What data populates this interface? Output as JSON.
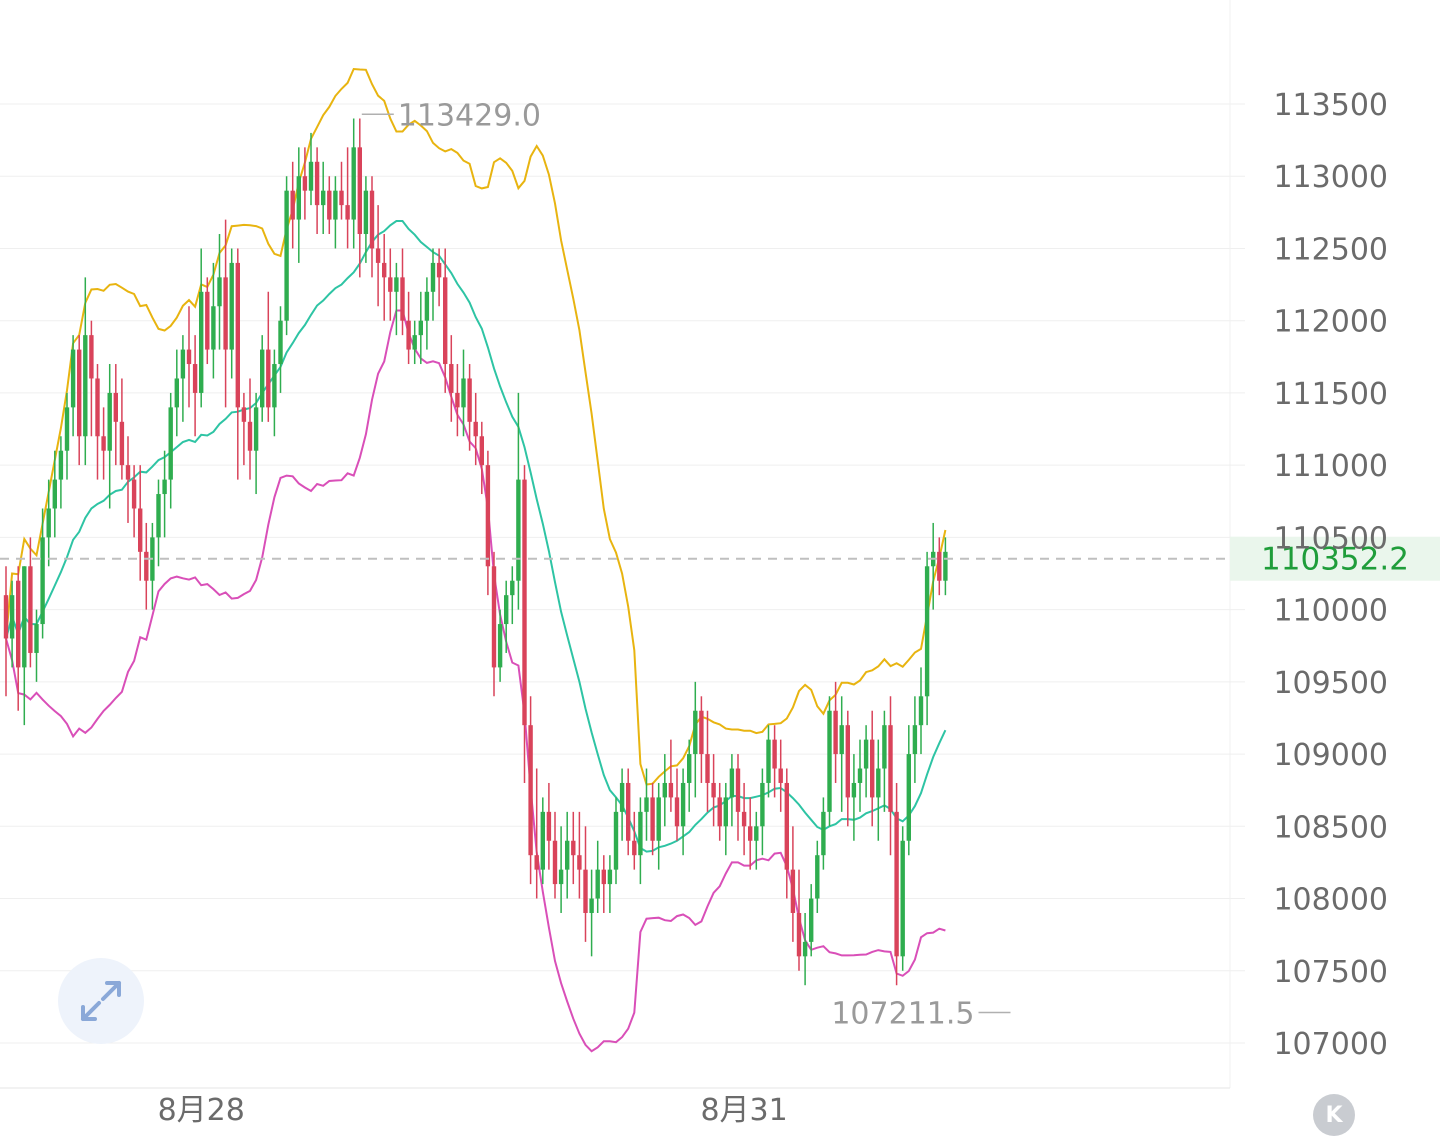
{
  "chart_data": {
    "type": "candlestick",
    "y_axis": {
      "ticks": [
        113500,
        113000,
        112500,
        112000,
        111500,
        111000,
        110500,
        110000,
        109500,
        109000,
        108500,
        108000,
        107500,
        107000
      ],
      "range": [
        106700,
        114000
      ],
      "position": "right"
    },
    "x_axis": {
      "labels": [
        {
          "text": "8月28",
          "index": 32
        },
        {
          "text": "8月31",
          "index": 121
        }
      ]
    },
    "current_price": {
      "value": 110352.2,
      "label": "110352.2"
    },
    "annotations": [
      {
        "label": "113429.0",
        "value": 113429.0,
        "index": 58
      },
      {
        "label": "107211.5",
        "value": 107211.5,
        "index": 165
      }
    ],
    "candles_ohlc": [
      [
        110100,
        110300,
        109400,
        109800
      ],
      [
        109800,
        110200,
        109600,
        110100
      ],
      [
        110200,
        110300,
        109300,
        109600
      ],
      [
        109600,
        110300,
        109200,
        110300
      ],
      [
        110300,
        110500,
        109600,
        109700
      ],
      [
        109700,
        110000,
        109500,
        109900
      ],
      [
        109900,
        110700,
        109800,
        110500
      ],
      [
        110500,
        110900,
        110300,
        110700
      ],
      [
        110700,
        111100,
        110500,
        110900
      ],
      [
        110900,
        111200,
        110700,
        111100
      ],
      [
        111100,
        111500,
        110900,
        111400
      ],
      [
        111400,
        111900,
        111200,
        111800
      ],
      [
        111800,
        111900,
        111000,
        111200
      ],
      [
        111200,
        112300,
        111000,
        111900
      ],
      [
        111900,
        112000,
        111200,
        111600
      ],
      [
        111600,
        111700,
        110900,
        111200
      ],
      [
        111200,
        111400,
        110900,
        111100
      ],
      [
        111100,
        111700,
        110700,
        111500
      ],
      [
        111500,
        111700,
        111000,
        111300
      ],
      [
        111300,
        111600,
        110900,
        111000
      ],
      [
        111000,
        111200,
        110600,
        110900
      ],
      [
        110900,
        111000,
        110500,
        110700
      ],
      [
        110700,
        111000,
        110200,
        110400
      ],
      [
        110400,
        110600,
        110000,
        110200
      ],
      [
        110200,
        110600,
        110000,
        110500
      ],
      [
        110500,
        110900,
        110300,
        110800
      ],
      [
        110800,
        111100,
        110500,
        110900
      ],
      [
        110900,
        111500,
        110700,
        111400
      ],
      [
        111400,
        111800,
        111200,
        111600
      ],
      [
        111600,
        111900,
        111300,
        111800
      ],
      [
        111800,
        112100,
        111400,
        111700
      ],
      [
        111700,
        111900,
        111200,
        111500
      ],
      [
        111500,
        112500,
        111400,
        112200
      ],
      [
        112200,
        112300,
        111700,
        111800
      ],
      [
        111800,
        112400,
        111600,
        112100
      ],
      [
        112100,
        112600,
        111800,
        112300
      ],
      [
        112300,
        112700,
        111400,
        111800
      ],
      [
        111800,
        112500,
        111600,
        112400
      ],
      [
        112400,
        112500,
        110900,
        111400
      ],
      [
        111400,
        111500,
        111000,
        111300
      ],
      [
        111300,
        111600,
        110900,
        111100
      ],
      [
        111100,
        111500,
        110800,
        111400
      ],
      [
        111400,
        111900,
        111300,
        111800
      ],
      [
        111800,
        112200,
        111300,
        111400
      ],
      [
        111400,
        111800,
        111200,
        111700
      ],
      [
        111700,
        112100,
        111500,
        112000
      ],
      [
        112000,
        113000,
        111900,
        112900
      ],
      [
        112900,
        113100,
        112500,
        112700
      ],
      [
        112700,
        113200,
        112400,
        113000
      ],
      [
        113000,
        113200,
        112700,
        112900
      ],
      [
        112900,
        113300,
        112800,
        113100
      ],
      [
        113100,
        113200,
        112600,
        112800
      ],
      [
        112800,
        113100,
        112600,
        112900
      ],
      [
        112900,
        113000,
        112600,
        112700
      ],
      [
        112700,
        113000,
        112500,
        112900
      ],
      [
        112900,
        113100,
        112700,
        112800
      ],
      [
        112800,
        113200,
        112500,
        112700
      ],
      [
        112700,
        113400,
        112500,
        113200
      ],
      [
        113200,
        113400,
        112300,
        112600
      ],
      [
        112600,
        113000,
        112400,
        112900
      ],
      [
        112900,
        113000,
        112300,
        112500
      ],
      [
        112500,
        112800,
        112100,
        112400
      ],
      [
        112400,
        112600,
        112000,
        112300
      ],
      [
        112300,
        112500,
        112000,
        112200
      ],
      [
        112200,
        112400,
        111900,
        112300
      ],
      [
        112300,
        112500,
        111900,
        112000
      ],
      [
        112000,
        112200,
        111700,
        111800
      ],
      [
        111800,
        112000,
        111700,
        111900
      ],
      [
        111900,
        112200,
        111700,
        112000
      ],
      [
        112000,
        112300,
        111800,
        112200
      ],
      [
        112200,
        112500,
        112000,
        112400
      ],
      [
        112400,
        112500,
        112100,
        112300
      ],
      [
        112300,
        112500,
        111500,
        111700
      ],
      [
        111700,
        111900,
        111300,
        111500
      ],
      [
        111500,
        111700,
        111200,
        111400
      ],
      [
        111400,
        111800,
        111200,
        111600
      ],
      [
        111600,
        111700,
        111100,
        111300
      ],
      [
        111300,
        111500,
        111000,
        111200
      ],
      [
        111200,
        111300,
        110800,
        111000
      ],
      [
        111000,
        111100,
        110100,
        110300
      ],
      [
        110300,
        110400,
        109400,
        109600
      ],
      [
        109600,
        110000,
        109500,
        109900
      ],
      [
        109900,
        110200,
        109700,
        110100
      ],
      [
        110100,
        110300,
        109900,
        110200
      ],
      [
        110200,
        111500,
        110000,
        110900
      ],
      [
        110900,
        111000,
        108800,
        109200
      ],
      [
        109200,
        109400,
        108100,
        108300
      ],
      [
        108300,
        108900,
        108000,
        108200
      ],
      [
        108200,
        108700,
        108100,
        108600
      ],
      [
        108600,
        108800,
        108200,
        108400
      ],
      [
        108400,
        108600,
        108000,
        108100
      ],
      [
        108100,
        108500,
        107900,
        108200
      ],
      [
        108200,
        108600,
        108000,
        108400
      ],
      [
        108400,
        108600,
        108100,
        108300
      ],
      [
        108300,
        108600,
        108000,
        108200
      ],
      [
        108200,
        108500,
        107700,
        107900
      ],
      [
        107900,
        108200,
        107600,
        108000
      ],
      [
        108000,
        108400,
        107900,
        108200
      ],
      [
        108200,
        108300,
        107900,
        108100
      ],
      [
        108100,
        108300,
        107900,
        108200
      ],
      [
        108200,
        108700,
        108100,
        108600
      ],
      [
        108600,
        108900,
        108400,
        108800
      ],
      [
        108800,
        108900,
        108300,
        108400
      ],
      [
        108400,
        108600,
        108200,
        108300
      ],
      [
        108300,
        108700,
        108100,
        108600
      ],
      [
        108600,
        108900,
        108400,
        108700
      ],
      [
        108700,
        108800,
        108300,
        108400
      ],
      [
        108400,
        108800,
        108200,
        108700
      ],
      [
        108700,
        109000,
        108500,
        108800
      ],
      [
        108800,
        109100,
        108600,
        108700
      ],
      [
        108700,
        108900,
        108400,
        108500
      ],
      [
        108500,
        108900,
        108300,
        108800
      ],
      [
        108800,
        109100,
        108600,
        109000
      ],
      [
        109000,
        109500,
        108700,
        109300
      ],
      [
        109300,
        109400,
        108800,
        109000
      ],
      [
        109000,
        109300,
        108600,
        108800
      ],
      [
        108800,
        109000,
        108500,
        108700
      ],
      [
        108700,
        108800,
        108400,
        108500
      ],
      [
        108500,
        108800,
        108300,
        108700
      ],
      [
        108700,
        109000,
        108500,
        108900
      ],
      [
        108900,
        109000,
        108400,
        108600
      ],
      [
        108600,
        108800,
        108300,
        108500
      ],
      [
        108500,
        108700,
        108200,
        108400
      ],
      [
        108400,
        108600,
        108200,
        108500
      ],
      [
        108500,
        108900,
        108300,
        108800
      ],
      [
        108800,
        109200,
        108700,
        109100
      ],
      [
        109100,
        109200,
        108700,
        108900
      ],
      [
        108900,
        109100,
        108600,
        108800
      ],
      [
        108800,
        108900,
        108000,
        108200
      ],
      [
        108200,
        108500,
        107700,
        107900
      ],
      [
        107900,
        108200,
        107500,
        107600
      ],
      [
        107600,
        107900,
        107400,
        107700
      ],
      [
        107700,
        108100,
        107600,
        108000
      ],
      [
        108000,
        108400,
        107900,
        108300
      ],
      [
        108300,
        108700,
        108200,
        108600
      ],
      [
        108600,
        109400,
        108500,
        109300
      ],
      [
        109300,
        109500,
        108800,
        109000
      ],
      [
        109000,
        109400,
        108600,
        109200
      ],
      [
        109200,
        109300,
        108500,
        108700
      ],
      [
        108700,
        109000,
        108400,
        108800
      ],
      [
        108800,
        109100,
        108600,
        108900
      ],
      [
        108900,
        109200,
        108700,
        109100
      ],
      [
        109100,
        109300,
        108500,
        108700
      ],
      [
        108700,
        109100,
        108400,
        108900
      ],
      [
        108900,
        109300,
        108600,
        109200
      ],
      [
        109200,
        109400,
        108300,
        108600
      ],
      [
        108600,
        108800,
        107400,
        107600
      ],
      [
        107600,
        108500,
        107500,
        108400
      ],
      [
        108400,
        109200,
        108300,
        109000
      ],
      [
        109000,
        109400,
        108800,
        109200
      ],
      [
        109200,
        109600,
        109000,
        109400
      ],
      [
        109400,
        110400,
        109200,
        110300
      ],
      [
        110300,
        110600,
        110000,
        110400
      ],
      [
        110400,
        110500,
        110100,
        110200
      ],
      [
        110200,
        110500,
        110100,
        110400
      ]
    ],
    "bollinger_bands": {
      "upper_color": "#e8b410",
      "middle_color": "#2ec4a4",
      "lower_color": "#d94fb8"
    },
    "colors": {
      "up": "#2fad4f",
      "down": "#d9435a",
      "price_line": "#bfbfbf",
      "price_tag_bg": "#eaf6ec"
    }
  },
  "controls": {
    "expand_icon": "expand-arrows-icon",
    "k_button_label": "K"
  }
}
